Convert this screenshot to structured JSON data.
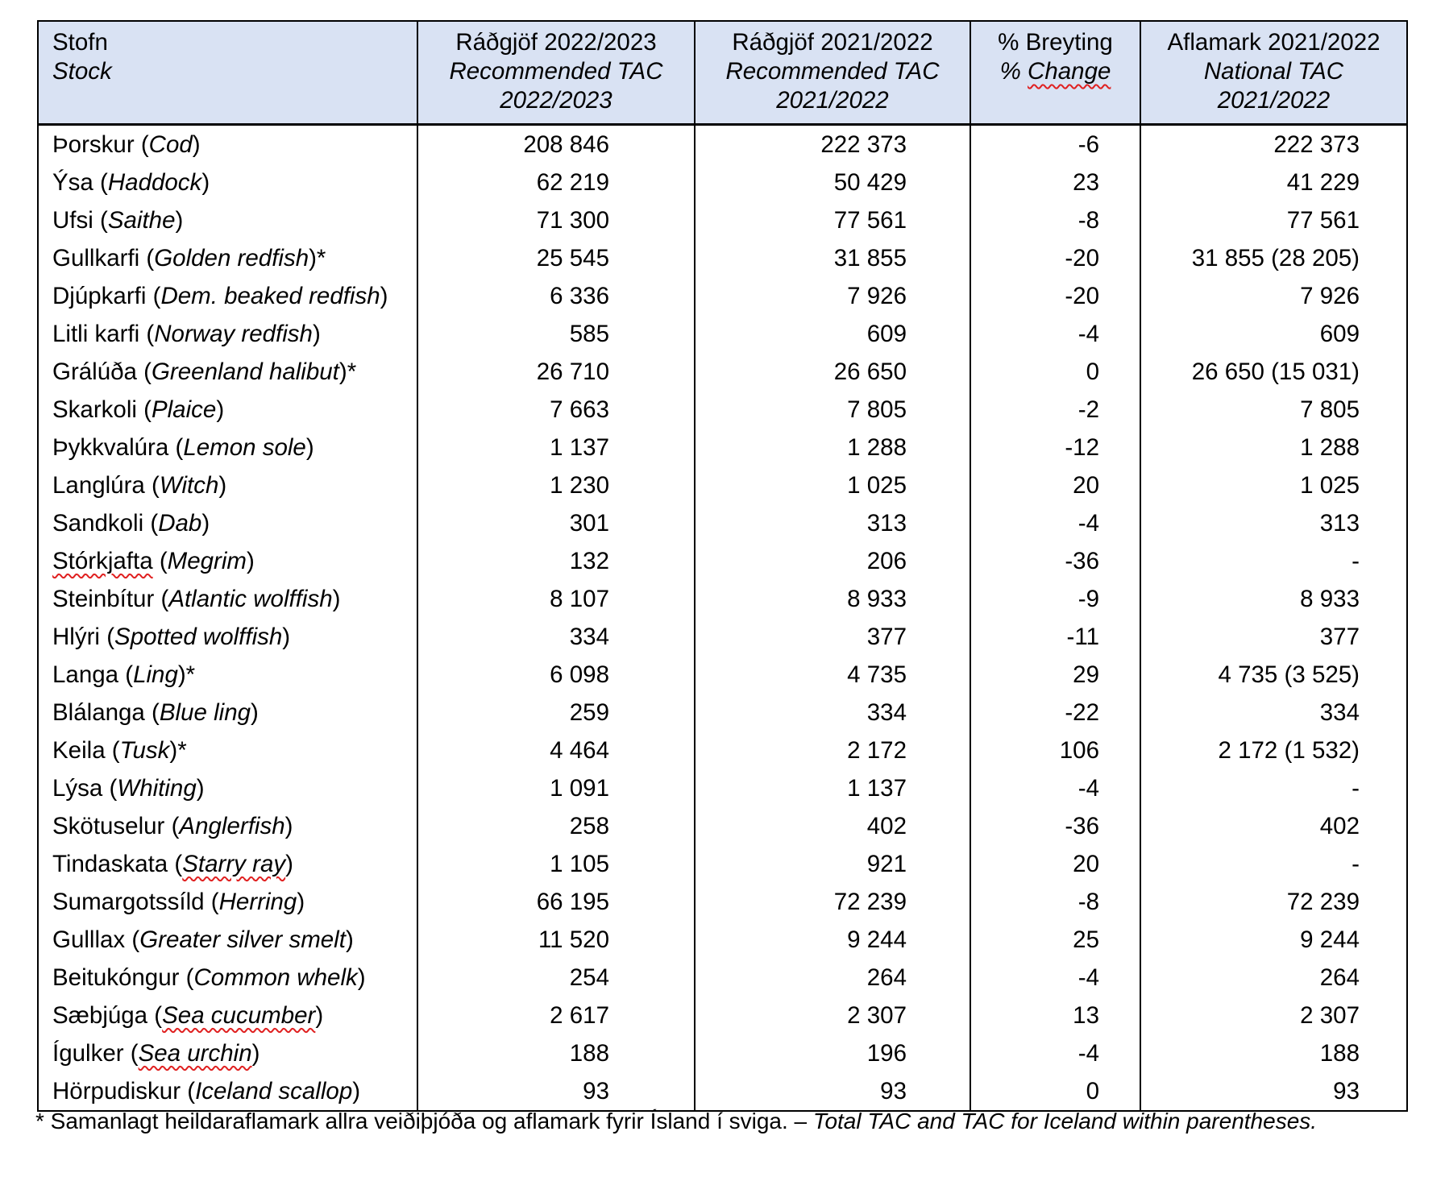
{
  "colors": {
    "header_bg": "#d9e2f3",
    "border": "#000000",
    "squiggle_red": "#e02020",
    "text": "#000000"
  },
  "header": {
    "columns": [
      {
        "line1": "Stofn",
        "line2": "Stock"
      },
      {
        "line1": "Ráðgjöf 2022/2023",
        "line2": "Recommended TAC",
        "line3": "2022/2023"
      },
      {
        "line1": "Ráðgjöf 2021/2022",
        "line2": "Recommended TAC",
        "line3": "2021/2022"
      },
      {
        "line1": "% Breyting",
        "line2": "% Change",
        "line2_squiggle_word": "Change"
      },
      {
        "line1": "Aflamark 2021/2022",
        "line2": "National TAC",
        "line3": "2021/2022"
      }
    ]
  },
  "rows": [
    {
      "is": "Þorskur",
      "en": "Cod",
      "star": "",
      "sq_is": false,
      "sq_en": false,
      "v1": "208 846",
      "v2": "222 373",
      "chg": "-6",
      "nat": "222 373"
    },
    {
      "is": "Ýsa",
      "en": "Haddock",
      "star": "",
      "sq_is": false,
      "sq_en": false,
      "v1": "62 219",
      "v2": "50 429",
      "chg": "23",
      "nat": "41 229"
    },
    {
      "is": "Ufsi",
      "en": "Saithe",
      "star": "",
      "sq_is": false,
      "sq_en": false,
      "v1": "71 300",
      "v2": "77 561",
      "chg": "-8",
      "nat": "77 561"
    },
    {
      "is": "Gullkarfi",
      "en": "Golden redfish",
      "star": "*",
      "sq_is": false,
      "sq_en": false,
      "v1": "25 545",
      "v2": "31 855",
      "chg": "-20",
      "nat": "31 855 (28 205)"
    },
    {
      "is": "Djúpkarfi",
      "en": "Dem. beaked redfish",
      "star": "",
      "sq_is": false,
      "sq_en": false,
      "v1": "6 336",
      "v2": "7 926",
      "chg": "-20",
      "nat": "7 926"
    },
    {
      "is": "Litli karfi",
      "en": "Norway redfish",
      "star": "",
      "sq_is": false,
      "sq_en": false,
      "v1": "585",
      "v2": "609",
      "chg": "-4",
      "nat": "609"
    },
    {
      "is": "Grálúða",
      "en": "Greenland halibut",
      "star": "*",
      "sq_is": false,
      "sq_en": false,
      "v1": "26 710",
      "v2": "26 650",
      "chg": "0",
      "nat": "26 650 (15 031)"
    },
    {
      "is": "Skarkoli",
      "en": "Plaice",
      "star": "",
      "sq_is": false,
      "sq_en": false,
      "v1": "7 663",
      "v2": "7 805",
      "chg": "-2",
      "nat": "7 805"
    },
    {
      "is": "Þykkvalúra",
      "en": "Lemon sole",
      "star": "",
      "sq_is": false,
      "sq_en": false,
      "v1": "1 137",
      "v2": "1 288",
      "chg": "-12",
      "nat": "1 288"
    },
    {
      "is": "Langlúra",
      "en": "Witch",
      "star": "",
      "sq_is": false,
      "sq_en": false,
      "v1": "1 230",
      "v2": "1 025",
      "chg": "20",
      "nat": "1 025"
    },
    {
      "is": "Sandkoli",
      "en": "Dab",
      "star": "",
      "sq_is": false,
      "sq_en": false,
      "v1": "301",
      "v2": "313",
      "chg": "-4",
      "nat": "313"
    },
    {
      "is": "Stórkjafta",
      "en": "Megrim",
      "star": "",
      "sq_is": true,
      "sq_en": false,
      "v1": "132",
      "v2": "206",
      "chg": "-36",
      "nat": "-"
    },
    {
      "is": "Steinbítur",
      "en": "Atlantic wolffish",
      "star": "",
      "sq_is": false,
      "sq_en": false,
      "v1": "8 107",
      "v2": "8 933",
      "chg": "-9",
      "nat": "8 933"
    },
    {
      "is": "Hlýri",
      "en": "Spotted wolffish",
      "star": "",
      "sq_is": false,
      "sq_en": false,
      "v1": "334",
      "v2": "377",
      "chg": "-11",
      "nat": "377"
    },
    {
      "is": "Langa",
      "en": "Ling",
      "star": "*",
      "sq_is": false,
      "sq_en": false,
      "v1": "6 098",
      "v2": "4 735",
      "chg": "29",
      "nat": "4 735 (3 525)"
    },
    {
      "is": "Blálanga",
      "en": "Blue ling",
      "star": "",
      "sq_is": false,
      "sq_en": false,
      "v1": "259",
      "v2": "334",
      "chg": "-22",
      "nat": "334"
    },
    {
      "is": "Keila",
      "en": "Tusk",
      "star": "*",
      "sq_is": false,
      "sq_en": false,
      "v1": "4 464",
      "v2": "2 172",
      "chg": "106",
      "nat": "2 172 (1 532)"
    },
    {
      "is": "Lýsa",
      "en": "Whiting",
      "star": "",
      "sq_is": false,
      "sq_en": false,
      "v1": "1 091",
      "v2": "1 137",
      "chg": "-4",
      "nat": "-"
    },
    {
      "is": "Skötuselur",
      "en": "Anglerfish",
      "star": "",
      "sq_is": false,
      "sq_en": false,
      "v1": "258",
      "v2": "402",
      "chg": "-36",
      "nat": "402"
    },
    {
      "is": "Tindaskata",
      "en": "Starry ray",
      "star": "",
      "sq_is": false,
      "sq_en": true,
      "v1": "1 105",
      "v2": "921",
      "chg": "20",
      "nat": "-"
    },
    {
      "is": "Sumargotssíld",
      "en": "Herring",
      "star": "",
      "sq_is": false,
      "sq_en": false,
      "v1": "66 195",
      "v2": "72 239",
      "chg": "-8",
      "nat": "72 239"
    },
    {
      "is": "Gulllax",
      "en": "Greater silver smelt",
      "star": "",
      "sq_is": false,
      "sq_en": false,
      "v1": "11 520",
      "v2": "9 244",
      "chg": "25",
      "nat": "9 244"
    },
    {
      "is": "Beitukóngur",
      "en": "Common whelk",
      "star": "",
      "sq_is": false,
      "sq_en": false,
      "v1": "254",
      "v2": "264",
      "chg": "-4",
      "nat": "264"
    },
    {
      "is": "Sæbjúga",
      "en": "Sea cucumber",
      "star": "",
      "sq_is": false,
      "sq_en": true,
      "v1": "2 617",
      "v2": "2 307",
      "chg": "13",
      "nat": "2 307"
    },
    {
      "is": "Ígulker",
      "en": "Sea urchin",
      "star": "",
      "sq_is": false,
      "sq_en": true,
      "v1": "188",
      "v2": "196",
      "chg": "-4",
      "nat": "188"
    },
    {
      "is": "Hörpudiskur",
      "en": "Iceland scallop",
      "star": "",
      "sq_is": false,
      "sq_en": false,
      "v1": "93",
      "v2": "93",
      "chg": "0",
      "nat": "93"
    }
  ],
  "footnote": {
    "regular": "* Samanlagt heildaraflamark allra veiðiþjóða og aflamark fyrir Ísland í sviga. – ",
    "italic": "Total TAC and TAC for Iceland within parentheses."
  }
}
